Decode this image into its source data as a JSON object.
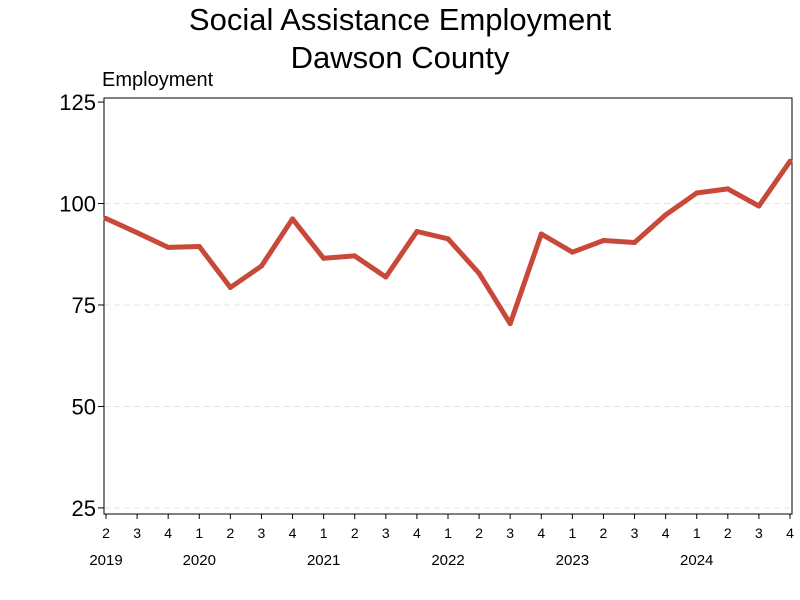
{
  "chart_data": {
    "type": "line",
    "title": "Social Assistance Employment",
    "subtitle": "Dawson County",
    "ylabel": "Employment",
    "xlabel": "",
    "ylim": [
      23.5,
      126
    ],
    "yticks": [
      25,
      50,
      75,
      100,
      125
    ],
    "grid": true,
    "legend": "none",
    "line_color": "#c8483a",
    "grid_color": "#e3e3e3",
    "x": [
      {
        "quarter": "2",
        "year": "2019"
      },
      {
        "quarter": "3",
        "year": "2019"
      },
      {
        "quarter": "4",
        "year": "2019"
      },
      {
        "quarter": "1",
        "year": "2020"
      },
      {
        "quarter": "2",
        "year": "2020"
      },
      {
        "quarter": "3",
        "year": "2020"
      },
      {
        "quarter": "4",
        "year": "2020"
      },
      {
        "quarter": "1",
        "year": "2021"
      },
      {
        "quarter": "2",
        "year": "2021"
      },
      {
        "quarter": "3",
        "year": "2021"
      },
      {
        "quarter": "4",
        "year": "2021"
      },
      {
        "quarter": "1",
        "year": "2022"
      },
      {
        "quarter": "2",
        "year": "2022"
      },
      {
        "quarter": "3",
        "year": "2022"
      },
      {
        "quarter": "4",
        "year": "2022"
      },
      {
        "quarter": "1",
        "year": "2023"
      },
      {
        "quarter": "2",
        "year": "2023"
      },
      {
        "quarter": "3",
        "year": "2023"
      },
      {
        "quarter": "4",
        "year": "2023"
      },
      {
        "quarter": "1",
        "year": "2024"
      },
      {
        "quarter": "2",
        "year": "2024"
      },
      {
        "quarter": "3",
        "year": "2024"
      },
      {
        "quarter": "4",
        "year": "2024"
      }
    ],
    "values": [
      96.3,
      92.8,
      89.2,
      89.4,
      79.3,
      84.6,
      96.2,
      86.5,
      87.1,
      81.9,
      93.1,
      91.3,
      82.8,
      70.4,
      92.5,
      88.0,
      90.9,
      90.4,
      97.2,
      102.6,
      103.6,
      99.4,
      110.4
    ]
  }
}
